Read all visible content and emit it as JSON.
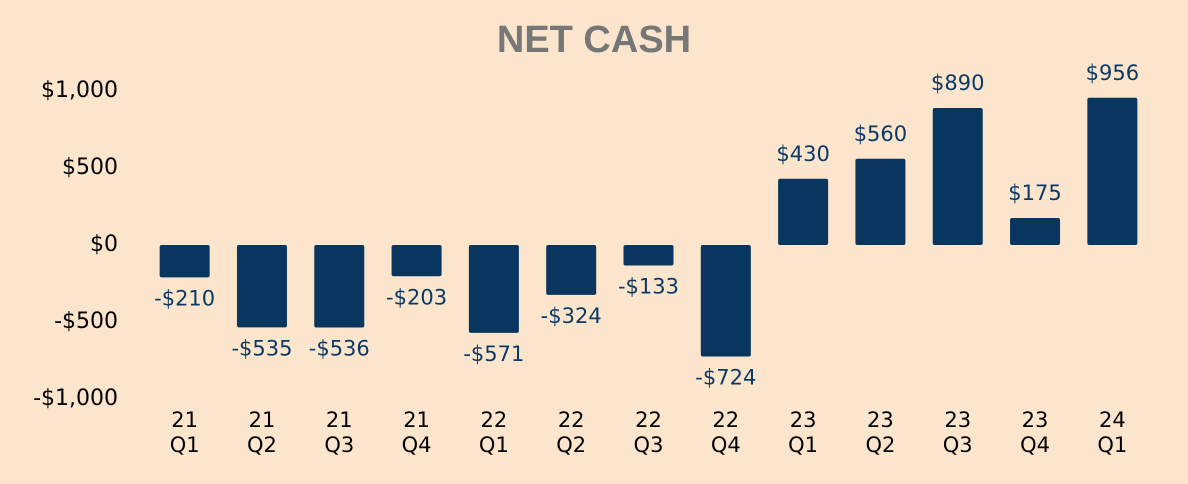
{
  "chart_data": {
    "type": "bar",
    "title": "NET CASH",
    "categories": [
      "21\nQ1",
      "21\nQ2",
      "21\nQ3",
      "21\nQ4",
      "22\nQ1",
      "22\nQ2",
      "22\nQ3",
      "22\nQ4",
      "23\nQ1",
      "23\nQ2",
      "23\nQ3",
      "23\nQ4",
      "24\nQ1"
    ],
    "values": [
      -210,
      -535,
      -536,
      -203,
      -571,
      -324,
      -133,
      -724,
      430,
      560,
      890,
      175,
      956
    ],
    "value_labels": [
      "-$210",
      "-$535",
      "-$536",
      "-$203",
      "-$571",
      "-$324",
      "-$133",
      "-$724",
      "$430",
      "$560",
      "$890",
      "$175",
      "$956"
    ],
    "color": "#08365f",
    "ylim": [
      -1000,
      1000
    ],
    "yticks": [
      {
        "value": -1000,
        "label": "-$1,000"
      },
      {
        "value": -500,
        "label": "-$500"
      },
      {
        "value": 0,
        "label": "$0"
      },
      {
        "value": 500,
        "label": "$500"
      },
      {
        "value": 1000,
        "label": "$1,000"
      }
    ],
    "grid": false
  }
}
